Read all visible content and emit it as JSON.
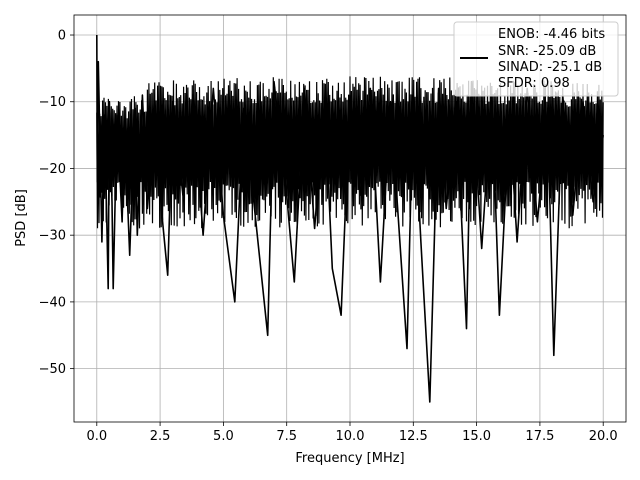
{
  "chart_data": {
    "type": "line",
    "xlabel": "Frequency [MHz]",
    "ylabel": "PSD [dB]",
    "xlim": [
      -0.9,
      20.9
    ],
    "ylim": [
      -58,
      3
    ],
    "xticks": [
      0.0,
      2.5,
      5.0,
      7.5,
      10.0,
      12.5,
      15.0,
      17.5,
      20.0
    ],
    "xtick_labels": [
      "0.0",
      "2.5",
      "5.0",
      "7.5",
      "10.0",
      "12.5",
      "15.0",
      "17.5",
      "20.0"
    ],
    "yticks": [
      0,
      -10,
      -20,
      -30,
      -40,
      -50
    ],
    "ytick_labels": [
      "0",
      "−10",
      "−20",
      "−30",
      "−40",
      "−50"
    ],
    "grid": true,
    "line_color": "#000000",
    "legend": {
      "placement": "top-right",
      "lines": [
        "ENOB: -4.46 bits",
        "SNR: -25.09 dB",
        "SINAD: -25.1 dB",
        "SFDR: 0.98"
      ]
    },
    "series": [
      {
        "x": [
          0.0,
          0.02,
          0.06,
          0.12,
          0.2,
          0.3,
          0.35,
          0.45,
          0.5,
          0.6,
          0.65,
          0.8,
          1.0,
          1.1,
          1.3,
          1.5,
          1.6,
          1.8,
          2.0,
          2.3,
          2.6,
          2.8,
          3.0,
          3.4,
          3.8,
          4.2,
          4.6,
          5.0,
          5.45,
          5.8,
          6.2,
          6.75,
          7.0,
          7.5,
          7.8,
          8.2,
          8.6,
          9.0,
          9.3,
          9.65,
          10.0,
          10.4,
          10.8,
          11.2,
          11.6,
          11.9,
          12.25,
          12.5,
          12.8,
          13.15,
          13.5,
          13.8,
          14.2,
          14.6,
          14.8,
          15.2,
          15.6,
          15.9,
          16.3,
          16.6,
          17.0,
          17.4,
          17.8,
          18.05,
          18.4,
          18.8,
          19.2,
          19.6,
          20.0
        ],
        "y": [
          0.0,
          -22.0,
          -4.0,
          -15.0,
          -31.0,
          -12.0,
          -20.0,
          -38.0,
          -10.0,
          -25.0,
          -38.0,
          -12.0,
          -28.0,
          -14.0,
          -33.0,
          -11.0,
          -30.0,
          -9.0,
          -26.0,
          -12.0,
          -28.0,
          -36.0,
          -10.0,
          -24.0,
          -9.0,
          -30.0,
          -8.0,
          -27.0,
          -40.0,
          -11.0,
          -25.0,
          -45.0,
          -7.0,
          -24.0,
          -37.0,
          -8.0,
          -29.0,
          -10.0,
          -35.0,
          -42.0,
          -9.0,
          -24.0,
          -8.0,
          -37.0,
          -10.0,
          -27.0,
          -47.0,
          -9.0,
          -31.0,
          -55.0,
          -8.0,
          -26.0,
          -10.0,
          -44.0,
          -7.0,
          -32.0,
          -9.0,
          -42.0,
          -12.0,
          -31.0,
          -8.0,
          -28.0,
          -11.0,
          -48.0,
          -9.0,
          -27.0,
          -10.0,
          -25.0,
          -15.0
        ]
      }
    ]
  }
}
